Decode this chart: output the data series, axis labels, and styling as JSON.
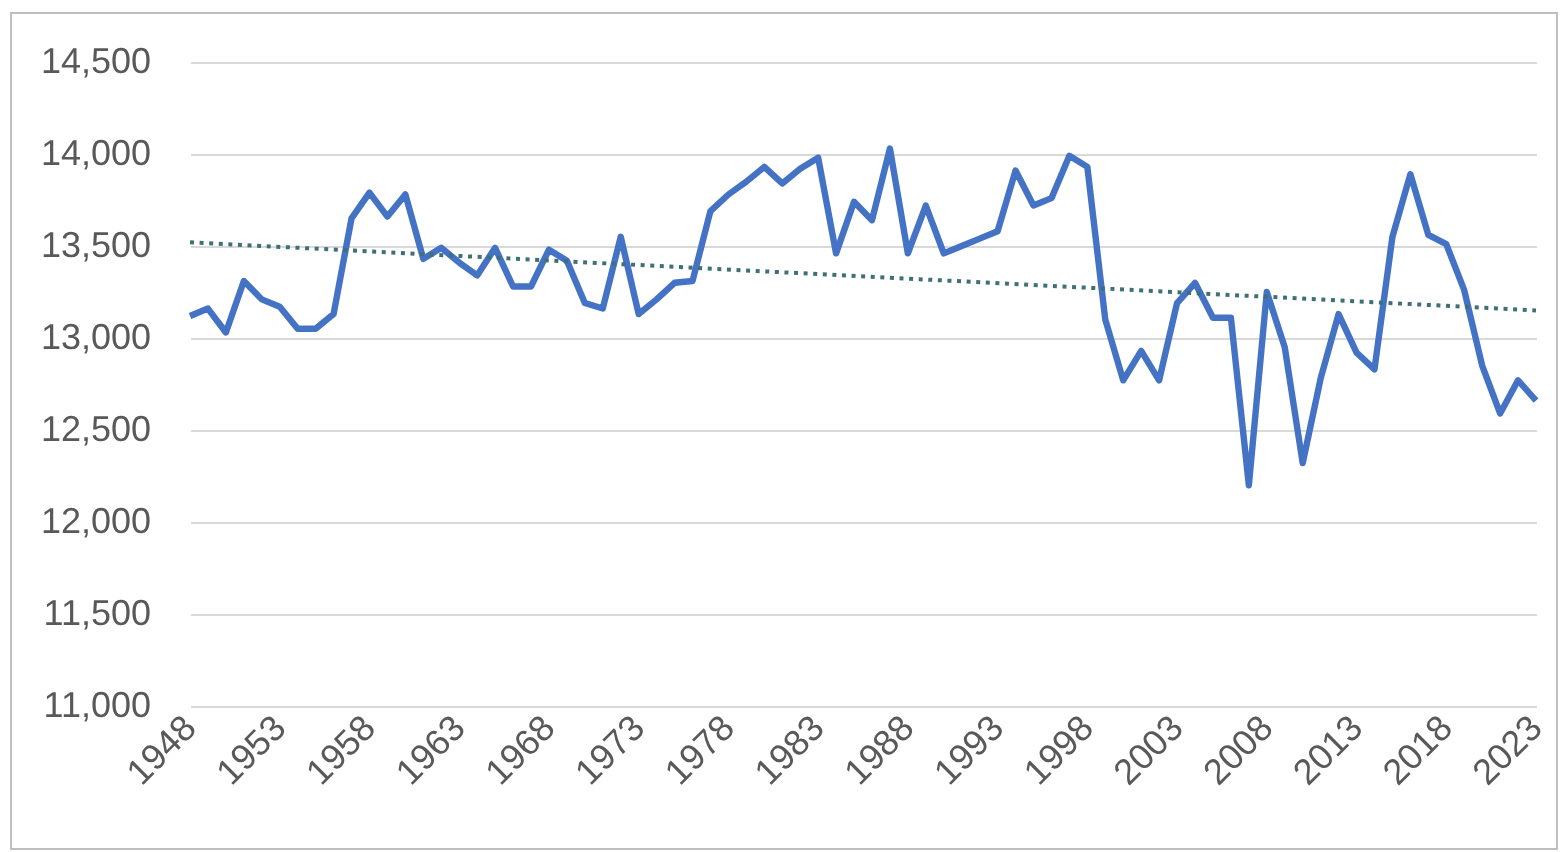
{
  "chart_data": {
    "type": "line",
    "x": [
      1948,
      1949,
      1950,
      1951,
      1952,
      1953,
      1954,
      1955,
      1956,
      1957,
      1958,
      1959,
      1960,
      1961,
      1962,
      1963,
      1964,
      1965,
      1966,
      1967,
      1968,
      1969,
      1970,
      1971,
      1972,
      1973,
      1974,
      1975,
      1976,
      1977,
      1978,
      1979,
      1980,
      1981,
      1982,
      1983,
      1984,
      1985,
      1986,
      1987,
      1988,
      1989,
      1990,
      1991,
      1992,
      1993,
      1994,
      1995,
      1996,
      1997,
      1998,
      1999,
      2000,
      2001,
      2002,
      2003,
      2004,
      2005,
      2006,
      2007,
      2008,
      2009,
      2010,
      2011,
      2012,
      2013,
      2014,
      2015,
      2016,
      2017,
      2018,
      2019,
      2020,
      2021,
      2022,
      2023
    ],
    "series": [
      {
        "color": "#4472c4",
        "values": [
          13120,
          13160,
          13030,
          13310,
          13210,
          13170,
          13050,
          13050,
          13130,
          13650,
          13790,
          13660,
          13780,
          13430,
          13490,
          13410,
          13340,
          13490,
          13280,
          13280,
          13480,
          13420,
          13190,
          13160,
          13550,
          13130,
          13210,
          13300,
          13310,
          13690,
          13780,
          13850,
          13930,
          13840,
          13920,
          13980,
          13460,
          13740,
          13640,
          14030,
          13460,
          13720,
          13460,
          13500,
          13540,
          13580,
          13910,
          13720,
          13760,
          13990,
          13930,
          13100,
          12770,
          12930,
          12770,
          13190,
          13300,
          13110,
          13110,
          12200,
          13250,
          12950,
          12320,
          12780,
          13130,
          12920,
          12830,
          13550,
          13890,
          13560,
          13510,
          13260,
          12850,
          12590,
          12770,
          12660
        ]
      },
      {
        "type": "line",
        "x": [
          1948,
          2023
        ],
        "values": [
          13520,
          13150
        ],
        "color": "#3f6f77",
        "line_style": "dotted"
      }
    ],
    "xlim": [
      1948,
      2023
    ],
    "xticks": [
      1948,
      1953,
      1958,
      1963,
      1968,
      1973,
      1978,
      1983,
      1988,
      1993,
      1998,
      2003,
      2008,
      2013,
      2018,
      2023
    ],
    "ylim": [
      11000,
      14500
    ],
    "yticks": [
      {
        "value": 11000,
        "label": "11,000"
      },
      {
        "value": 11500,
        "label": "11,500"
      },
      {
        "value": 12000,
        "label": "12,000"
      },
      {
        "value": 12500,
        "label": "12,500"
      },
      {
        "value": 13000,
        "label": "13,000"
      },
      {
        "value": 13500,
        "label": "13,500"
      },
      {
        "value": 14000,
        "label": "14,000"
      },
      {
        "value": 14500,
        "label": "14,500"
      }
    ],
    "grid": "y"
  }
}
